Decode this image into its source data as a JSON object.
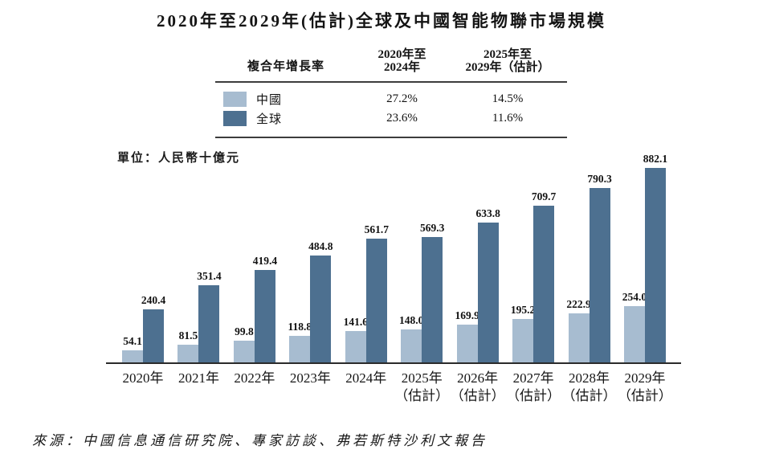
{
  "title": "2020年至2029年(估計)全球及中國智能物聯市場規模",
  "unit_label": "單位：人民幣十億元",
  "source": "來源：中國信息通信研究院、專家訪談、弗若斯特沙利文報告",
  "colors": {
    "china": "#a7bcd0",
    "global": "#4d7090"
  },
  "cagr_table": {
    "header_col1": "複合年增長率",
    "header_col2": [
      "2020年至",
      "2024年"
    ],
    "header_col3": [
      "2025年至",
      "2029年（估計）"
    ],
    "rows": [
      {
        "label": "中國",
        "series": "china",
        "v2020_2024": "27.2%",
        "v2025_2029": "14.5%"
      },
      {
        "label": "全球",
        "series": "global",
        "v2020_2024": "23.6%",
        "v2025_2029": "11.6%"
      }
    ]
  },
  "chart_data": {
    "type": "bar",
    "title": "2020年至2029年(估計)全球及中國智能物聯市場規模",
    "ylabel": "人民幣十億元",
    "ylim": [
      0,
      900
    ],
    "grid": false,
    "legend_position": "top-table",
    "categories": [
      [
        "2020年"
      ],
      [
        "2021年"
      ],
      [
        "2022年"
      ],
      [
        "2023年"
      ],
      [
        "2024年"
      ],
      [
        "2025年",
        "（估計）"
      ],
      [
        "2026年",
        "（估計）"
      ],
      [
        "2027年",
        "（估計）"
      ],
      [
        "2028年",
        "（估計）"
      ],
      [
        "2029年",
        "（估計）"
      ]
    ],
    "series": [
      {
        "name": "中國",
        "color": "#a7bcd0",
        "values": [
          54.1,
          81.5,
          99.8,
          118.8,
          141.6,
          148.0,
          169.9,
          195.2,
          222.9,
          254.0
        ],
        "labels": [
          "54.1",
          "81.5",
          "99.8",
          "118.8",
          "141.6",
          "148.0",
          "169.9",
          "195.2",
          "222.9",
          "254.0"
        ]
      },
      {
        "name": "全球",
        "color": "#4d7090",
        "values": [
          240.4,
          351.4,
          419.4,
          484.8,
          561.7,
          569.3,
          633.8,
          709.7,
          790.3,
          882.1
        ],
        "labels": [
          "240.4",
          "351.4",
          "419.4",
          "484.8",
          "561.7",
          "569.3",
          "633.8",
          "709.7",
          "790.3",
          "882.1"
        ]
      }
    ],
    "cagr": {
      "中國": {
        "2020年至2024年": "27.2%",
        "2025年至2029年（估計）": "14.5%"
      },
      "全球": {
        "2020年至2024年": "23.6%",
        "2025年至2029年（估計）": "11.6%"
      }
    }
  }
}
